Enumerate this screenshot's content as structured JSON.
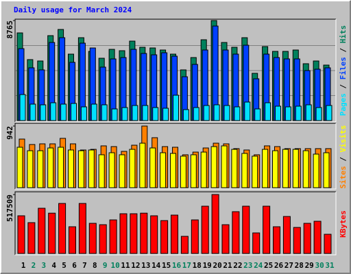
{
  "title": "Daily usage for March 2024",
  "separator": "/",
  "chart_data": [
    {
      "type": "bar",
      "ylim": [
        0,
        8765
      ],
      "yticks": [
        8765
      ],
      "series": [
        {
          "name": "Hits",
          "color": "#00805c",
          "values": [
            7684,
            5343,
            5223,
            7444,
            7985,
            5823,
            7264,
            6063,
            5463,
            6243,
            6124,
            6964,
            6424,
            6364,
            6184,
            5823,
            4443,
            5523,
            7084,
            8765,
            6844,
            6424,
            7264,
            4142,
            6484,
            6063,
            6063,
            6184,
            4983,
            5223,
            4863
          ]
        },
        {
          "name": "Files",
          "color": "#0040ff",
          "values": [
            6303,
            4623,
            4442,
            6844,
            7264,
            5103,
            6784,
            6363,
            4683,
            5403,
            5523,
            6243,
            5883,
            5763,
            5943,
            5643,
            3842,
            4923,
            6183,
            8284,
            6183,
            5823,
            6603,
            3662,
            5823,
            5523,
            5403,
            5403,
            4382,
            4502,
            4623
          ]
        },
        {
          "name": "Pages",
          "color": "#00e0ff",
          "values": [
            2281,
            1441,
            1381,
            1561,
            1441,
            1501,
            1201,
            1441,
            1381,
            1021,
            1141,
            1321,
            1321,
            1141,
            1081,
            2221,
            961,
            1141,
            1321,
            1381,
            1321,
            1201,
            1621,
            1021,
            1561,
            1261,
            1201,
            1261,
            1381,
            1141,
            1321
          ]
        }
      ]
    },
    {
      "type": "bar",
      "ylim": [
        0,
        942
      ],
      "yticks": [
        942
      ],
      "series": [
        {
          "name": "Visits",
          "color": "#ffff00",
          "values": [
            618,
            565,
            565,
            607,
            618,
            576,
            565,
            576,
            503,
            534,
            503,
            586,
            680,
            607,
            534,
            524,
            482,
            503,
            544,
            628,
            639,
            586,
            524,
            482,
            586,
            565,
            586,
            586,
            565,
            513,
            534
          ]
        },
        {
          "name": "Sites",
          "color": "#ff8000",
          "values": [
            743,
            660,
            670,
            670,
            754,
            670,
            576,
            586,
            639,
            628,
            555,
            649,
            942,
            764,
            628,
            618,
            503,
            544,
            607,
            680,
            670,
            597,
            576,
            503,
            639,
            628,
            597,
            597,
            597,
            597,
            597
          ]
        }
      ]
    },
    {
      "type": "bar",
      "ylim": [
        0,
        517509
      ],
      "yticks": [
        517509
      ],
      "categories": [
        "1",
        "2",
        "3",
        "4",
        "5",
        "6",
        "7",
        "8",
        "9",
        "10",
        "11",
        "12",
        "13",
        "14",
        "15",
        "16",
        "17",
        "18",
        "19",
        "20",
        "21",
        "22",
        "23",
        "24",
        "25",
        "26",
        "27",
        "28",
        "29",
        "30",
        "31"
      ],
      "label_colors": [
        "#000000",
        "#00805c",
        "#00805c",
        "#000000",
        "#000000",
        "#000000",
        "#000000",
        "#000000",
        "#00805c",
        "#00805c",
        "#000000",
        "#000000",
        "#000000",
        "#000000",
        "#000000",
        "#00805c",
        "#00805c",
        "#000000",
        "#000000",
        "#000000",
        "#000000",
        "#000000",
        "#00805c",
        "#00805c",
        "#000000",
        "#000000",
        "#000000",
        "#000000",
        "#000000",
        "#00805c",
        "#00805c"
      ],
      "series": [
        {
          "name": "KBytes",
          "color": "#ff0000",
          "values": [
            330935,
            270765,
            397122,
            354003,
            439241,
            234663,
            439241,
            264748,
            252714,
            294833,
            348986,
            348986,
            354003,
            330935,
            288816,
            336952,
            150425,
            294833,
            415173,
            517509,
            252714,
            367037,
            415173,
            180510,
            415173,
            234663,
            324918,
            228646,
            264748,
            282799,
            168476
          ]
        }
      ]
    }
  ]
}
